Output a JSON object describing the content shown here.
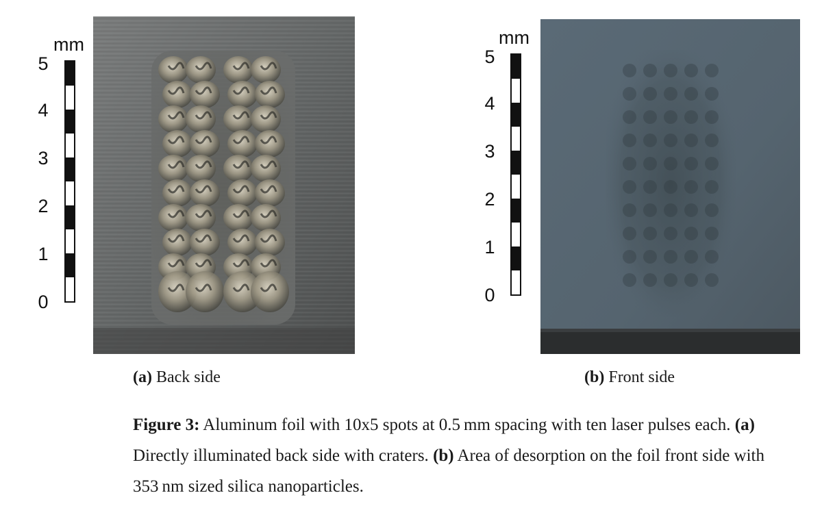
{
  "figure": {
    "panel_a": {
      "scale_unit": "mm",
      "scale_ticks": [
        "0",
        "1",
        "2",
        "3",
        "4",
        "5"
      ],
      "label": "(a)",
      "title": "Back side"
    },
    "panel_b": {
      "scale_unit": "mm",
      "scale_ticks": [
        "0",
        "1",
        "2",
        "3",
        "4",
        "5"
      ],
      "label": "(b)",
      "title": "Front side"
    },
    "caption": {
      "figure_label": "Figure 3:",
      "line1_text": " Aluminum foil with 10x5 spots at 0.5 mm spacing with ten laser pulses each. ",
      "line1_ref": "(a)",
      "line2_text_a": "Directly illuminated back side with craters. ",
      "line2_ref": "(b)",
      "line2_text_b": " Area of desorption on the foil front side with",
      "line3_text": "353 nm sized silica nanoparticles."
    }
  },
  "colors": {
    "foil_gray": "#6b6d6d",
    "foil_blue_gray": "#566673",
    "crater_highlight": "#c9c1ae",
    "scale_black": "#111111"
  }
}
